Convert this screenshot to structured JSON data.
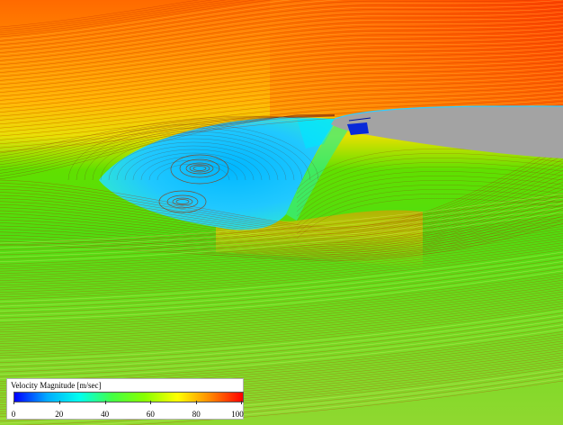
{
  "legend": {
    "title": "Velocity Magnitude [m/sec]",
    "ticks": [
      "0",
      "20",
      "40",
      "60",
      "80",
      "100"
    ],
    "colormap": [
      "#0000ff",
      "#00aaff",
      "#00ffee",
      "#44ff44",
      "#88ff00",
      "#ffff00",
      "#ff8800",
      "#ff0000"
    ]
  }
}
